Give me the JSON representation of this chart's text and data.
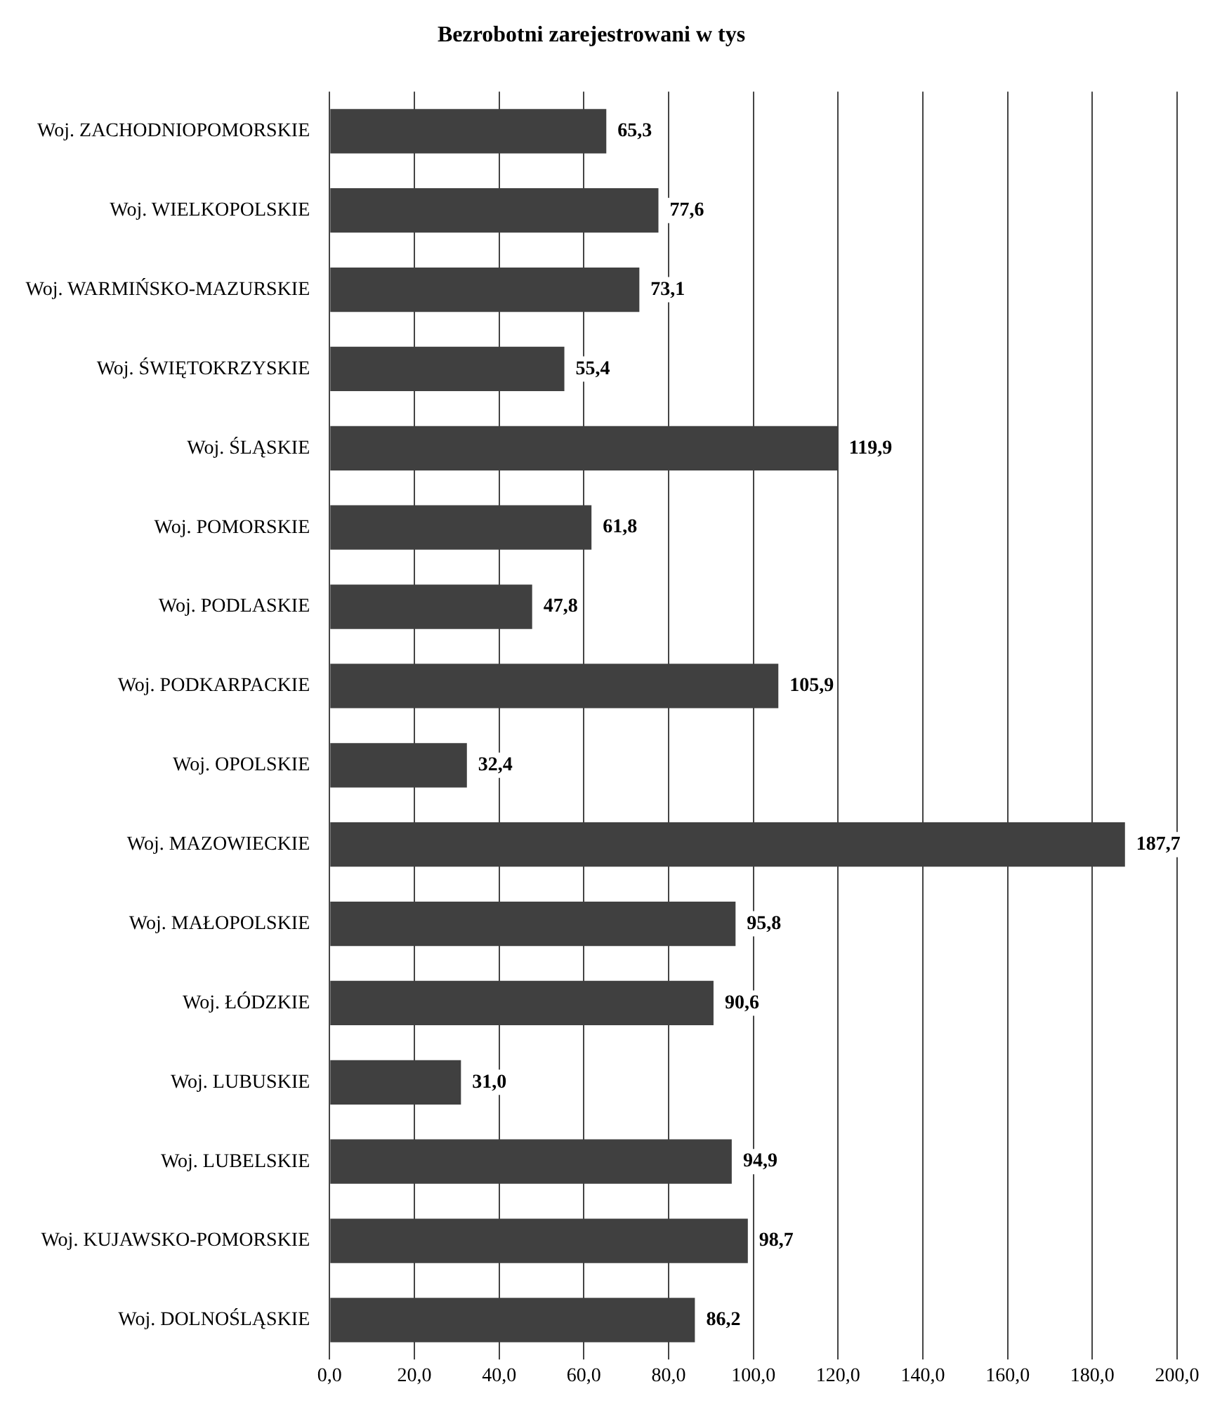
{
  "chart_data": {
    "type": "bar",
    "orientation": "horizontal",
    "title": "Bezrobotni zarejestrowani w tys",
    "categories": [
      "Woj. ZACHODNIOPOMORSKIE",
      "Woj. WIELKOPOLSKIE",
      "Woj. WARMIŃSKO-MAZURSKIE",
      "Woj. ŚWIĘTOKRZYSKIE",
      "Woj. ŚLĄSKIE",
      "Woj. POMORSKIE",
      "Woj. PODLASKIE",
      "Woj. PODKARPACKIE",
      "Woj. OPOLSKIE",
      "Woj. MAZOWIECKIE",
      "Woj. MAŁOPOLSKIE",
      "Woj. ŁÓDZKIE",
      "Woj. LUBUSKIE",
      "Woj. LUBELSKIE",
      "Woj. KUJAWSKO-POMORSKIE",
      "Woj. DOLNOŚLĄSKIE"
    ],
    "values": [
      65.3,
      77.6,
      73.1,
      55.4,
      119.9,
      61.8,
      47.8,
      105.9,
      32.4,
      187.7,
      95.8,
      90.6,
      31.0,
      94.9,
      98.7,
      86.2
    ],
    "value_labels": [
      "65,3",
      "77,6",
      "73,1",
      "55,4",
      "119,9",
      "61,8",
      "47,8",
      "105,9",
      "32,4",
      "187,7",
      "95,8",
      "90,6",
      "31,0",
      "94,9",
      "98,7",
      "86,2"
    ],
    "color": "#404040",
    "xlim": [
      0,
      200
    ],
    "xticks": [
      {
        "value": 0,
        "label": "0,0"
      },
      {
        "value": 20,
        "label": "20,0"
      },
      {
        "value": 40,
        "label": "40,0"
      },
      {
        "value": 60,
        "label": "60,0"
      },
      {
        "value": 80,
        "label": "80,0"
      },
      {
        "value": 100,
        "label": "100,0"
      },
      {
        "value": 120,
        "label": "120,0"
      },
      {
        "value": 140,
        "label": "140,0"
      },
      {
        "value": 160,
        "label": "160,0"
      },
      {
        "value": 180,
        "label": "180,0"
      },
      {
        "value": 200,
        "label": "200,0"
      }
    ],
    "grid": "x"
  }
}
